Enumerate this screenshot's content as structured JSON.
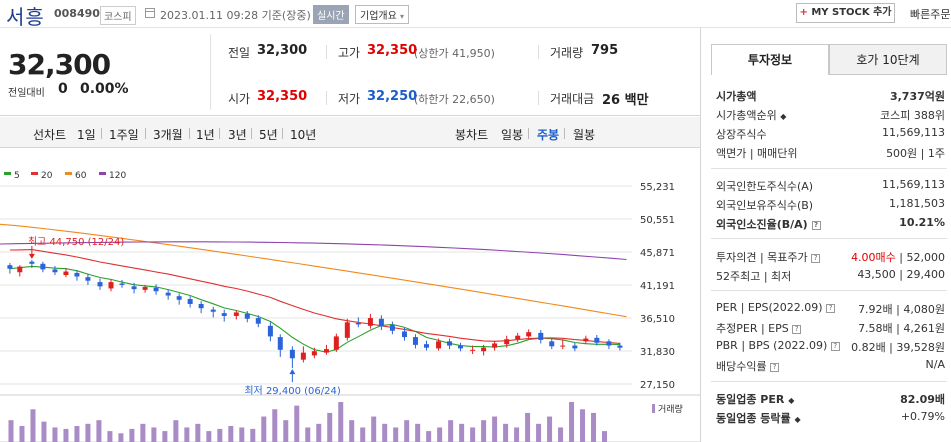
{
  "header": {
    "name": "서흥",
    "code": "008490",
    "market": "코스피",
    "date": "2023.01.11 09:28 기준(장중)",
    "realtime": "실시간",
    "company_info": "기업개요",
    "mystock": "MY STOCK 추가",
    "quick_order": "빠른주문"
  },
  "price": {
    "current": "32,300",
    "change_label": "전일대비",
    "change": "0",
    "change_pct": "0.00%"
  },
  "quote": {
    "prev_label": "전일",
    "prev": "32,300",
    "high_label": "고가",
    "high": "32,350",
    "upper_limit": "(상한가 41,950)",
    "volume_label": "거래량",
    "volume": "795",
    "open_label": "시가",
    "open": "32,350",
    "low_label": "저가",
    "low": "32,250",
    "lower_limit": "(하한가 22,650)",
    "amount_label": "거래대금",
    "amount": "26 백만"
  },
  "periods": {
    "line_label": "선차트",
    "items": [
      "1일",
      "1주일",
      "3개월",
      "1년",
      "3년",
      "5년",
      "10년"
    ],
    "candle_label": "봉차트",
    "candle_items": [
      "일봉",
      "주봉",
      "월봉"
    ],
    "active_candle": "주봉"
  },
  "chart_data": {
    "type": "candlestick",
    "interval": "weekly",
    "legend": [
      {
        "name": "5",
        "color": "#2ca02c"
      },
      {
        "name": "20",
        "color": "#e03030"
      },
      {
        "name": "60",
        "color": "#f08a1c"
      },
      {
        "name": "120",
        "color": "#8e44ad"
      }
    ],
    "y_ticks": [
      "55,231",
      "50,551",
      "45,871",
      "41,191",
      "36,510",
      "31,830",
      "27,150"
    ],
    "ylim": [
      27150,
      55231
    ],
    "volume_label": "거래량",
    "max_annotation": "최고 44,750 (12/24)",
    "min_annotation": "최저 29,400 (06/24)",
    "candles": [
      [
        0.9,
        44.0,
        43.5,
        44.3,
        42.8
      ],
      [
        1.8,
        43.0,
        43.8,
        44.0,
        42.4
      ],
      [
        2.9,
        44.5,
        44.2,
        44.75,
        43.6
      ],
      [
        3.9,
        44.2,
        43.4,
        44.5,
        43.0
      ],
      [
        5.0,
        43.4,
        43.0,
        43.9,
        42.6
      ],
      [
        6.0,
        42.6,
        43.1,
        43.6,
        42.3
      ],
      [
        7.0,
        42.9,
        42.4,
        43.3,
        41.8
      ],
      [
        8.0,
        42.3,
        41.8,
        42.8,
        41.2
      ],
      [
        9.1,
        41.6,
        41.0,
        42.1,
        40.5
      ],
      [
        10.1,
        40.7,
        41.6,
        41.9,
        40.3
      ],
      [
        11.1,
        41.4,
        41.2,
        41.9,
        40.8
      ],
      [
        12.2,
        41.0,
        40.6,
        41.5,
        40.0
      ],
      [
        13.2,
        40.5,
        40.9,
        41.2,
        40.1
      ],
      [
        14.2,
        40.8,
        40.3,
        41.3,
        39.8
      ],
      [
        15.3,
        40.1,
        39.7,
        40.5,
        39.1
      ],
      [
        16.3,
        39.6,
        39.1,
        40.0,
        38.4
      ],
      [
        17.3,
        39.2,
        38.5,
        39.6,
        38.0
      ],
      [
        18.3,
        38.5,
        37.9,
        38.9,
        37.2
      ],
      [
        19.4,
        37.7,
        37.4,
        38.1,
        36.6
      ],
      [
        20.4,
        37.2,
        36.8,
        37.7,
        36.0
      ],
      [
        21.5,
        36.8,
        37.3,
        37.6,
        36.3
      ],
      [
        22.5,
        37.1,
        36.4,
        37.5,
        35.9
      ],
      [
        23.5,
        36.5,
        35.7,
        36.9,
        35.2
      ],
      [
        24.6,
        35.4,
        33.9,
        35.9,
        33.2
      ],
      [
        25.5,
        33.8,
        32.0,
        34.2,
        31.0
      ],
      [
        26.6,
        32.0,
        30.8,
        32.5,
        29.4
      ],
      [
        27.6,
        30.6,
        31.6,
        32.5,
        30.2
      ],
      [
        28.6,
        31.2,
        31.8,
        32.3,
        30.8
      ],
      [
        29.7,
        31.6,
        32.1,
        32.7,
        31.3
      ],
      [
        30.6,
        32.0,
        33.9,
        34.3,
        31.7
      ],
      [
        31.6,
        33.7,
        35.9,
        36.4,
        33.3
      ],
      [
        32.6,
        35.8,
        35.6,
        36.6,
        35.2
      ],
      [
        33.7,
        35.4,
        36.5,
        37.1,
        35.0
      ],
      [
        34.7,
        36.4,
        35.3,
        36.9,
        34.8
      ],
      [
        35.7,
        35.5,
        34.7,
        36.0,
        34.2
      ],
      [
        36.8,
        34.6,
        33.8,
        35.1,
        33.3
      ],
      [
        37.8,
        33.8,
        32.7,
        34.2,
        32.2
      ],
      [
        38.8,
        32.8,
        32.3,
        33.3,
        31.9
      ],
      [
        39.9,
        32.2,
        33.2,
        33.6,
        31.9
      ],
      [
        40.9,
        33.2,
        32.6,
        33.6,
        32.1
      ],
      [
        41.9,
        32.6,
        32.2,
        33.0,
        31.8
      ],
      [
        43.0,
        32.0,
        32.0,
        32.6,
        31.4
      ],
      [
        44.0,
        31.8,
        32.3,
        32.7,
        31.2
      ],
      [
        45.0,
        32.3,
        32.9,
        33.3,
        31.9
      ],
      [
        46.1,
        32.8,
        33.5,
        34.0,
        32.3
      ],
      [
        47.1,
        33.5,
        34.0,
        34.4,
        33.1
      ],
      [
        48.1,
        33.9,
        34.5,
        34.9,
        33.6
      ],
      [
        49.2,
        34.4,
        33.4,
        34.8,
        32.9
      ],
      [
        50.2,
        33.2,
        32.5,
        33.6,
        32.1
      ],
      [
        51.2,
        32.6,
        32.6,
        33.5,
        32.1
      ],
      [
        52.3,
        32.6,
        32.2,
        33.0,
        31.8
      ],
      [
        53.3,
        33.2,
        33.6,
        34.0,
        32.8
      ],
      [
        54.3,
        33.7,
        33.0,
        34.1,
        32.6
      ],
      [
        55.4,
        33.2,
        32.6,
        33.5,
        32.1
      ],
      [
        56.4,
        32.6,
        32.3,
        33.0,
        31.9
      ]
    ],
    "volumes": [
      30,
      22,
      45,
      28,
      20,
      18,
      22,
      25,
      30,
      15,
      12,
      18,
      25,
      20,
      15,
      30,
      20,
      25,
      15,
      18,
      22,
      20,
      18,
      35,
      45,
      30,
      50,
      20,
      25,
      40,
      55,
      30,
      20,
      35,
      25,
      20,
      30,
      25,
      15,
      20,
      30,
      25,
      20,
      30,
      35,
      25,
      20,
      40,
      25,
      35,
      20,
      55,
      45,
      40,
      15
    ]
  },
  "right_panel": {
    "tab_info": "투자정보",
    "tab_ask": "호가 10단계",
    "rows": [
      {
        "label": "시가총액",
        "value": "3,737억원"
      },
      {
        "label": "시가총액순위",
        "value": "코스피 388위"
      },
      {
        "label": "상장주식수",
        "value": "11,569,113"
      },
      {
        "label": "액면가 | 매매단위",
        "value": "500원 | 1주"
      },
      {
        "label": "외국인한도주식수(A)",
        "value": "11,569,113"
      },
      {
        "label": "외국인보유주식수(B)",
        "value": "1,181,503"
      },
      {
        "label": "외국인소진율(B/A)",
        "value": "10.21%"
      },
      {
        "label": "투자의견 | 목표주가",
        "value_red": "4.00매수",
        "value": "52,000"
      },
      {
        "label": "52주최고 | 최저",
        "value": "43,500 | 29,400"
      },
      {
        "label": "PER | EPS(2022.09)",
        "value": "7.92배 | 4,080원"
      },
      {
        "label": "추정PER | EPS",
        "value": "7.58배 | 4,261원"
      },
      {
        "label": "PBR | BPS (2022.09)",
        "value": "0.82배 | 39,528원"
      },
      {
        "label": "배당수익률",
        "value": "N/A"
      },
      {
        "label": "동일업종 PER",
        "value": "82.09배"
      },
      {
        "label": "동일업종 등락률",
        "value": "+0.79%"
      }
    ]
  }
}
